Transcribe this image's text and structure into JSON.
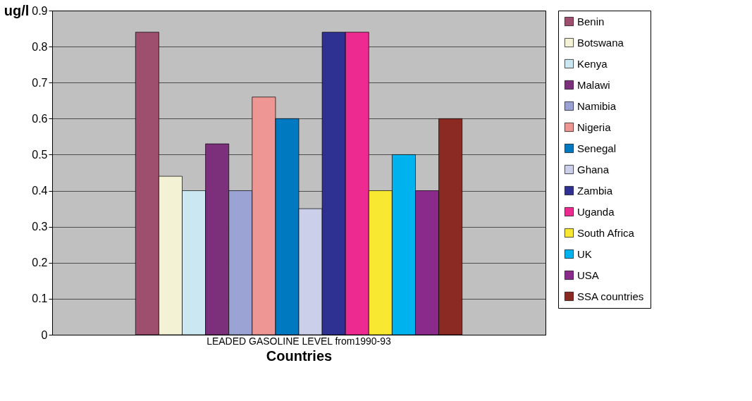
{
  "chart_data": {
    "type": "bar",
    "ylabel": "ug/l",
    "xlabel": "Countries",
    "categories": [
      "LEADED GASOLINE LEVEL from1990-93"
    ],
    "series": [
      {
        "name": "Benin",
        "color": "#9e4f6e",
        "values": [
          0.84
        ]
      },
      {
        "name": "Botswana",
        "color": "#f3f2d4",
        "values": [
          0.44
        ]
      },
      {
        "name": "Kenya",
        "color": "#cbe8f2",
        "values": [
          0.4
        ]
      },
      {
        "name": "Malawi",
        "color": "#7c307c",
        "values": [
          0.53
        ]
      },
      {
        "name": "Namibia",
        "color": "#9aa3d4",
        "values": [
          0.4
        ]
      },
      {
        "name": "Nigeria",
        "color": "#ee9693",
        "values": [
          0.66
        ]
      },
      {
        "name": "Senegal",
        "color": "#0079c1",
        "values": [
          0.6
        ]
      },
      {
        "name": "Ghana",
        "color": "#cbcfe9",
        "values": [
          0.35
        ]
      },
      {
        "name": "Zambia",
        "color": "#2e3191",
        "values": [
          0.84
        ]
      },
      {
        "name": "Uganda",
        "color": "#ec2a8f",
        "values": [
          0.84
        ]
      },
      {
        "name": "South Africa",
        "color": "#f8e831",
        "values": [
          0.4
        ]
      },
      {
        "name": "UK",
        "color": "#00b3ee",
        "values": [
          0.5
        ]
      },
      {
        "name": "USA",
        "color": "#8a2b8c",
        "values": [
          0.4
        ]
      },
      {
        "name": "SSA countries",
        "color": "#8b2a23",
        "values": [
          0.6
        ]
      }
    ],
    "ylim": [
      0,
      0.9
    ],
    "yticks": [
      0,
      0.1,
      0.2,
      0.3,
      0.4,
      0.5,
      0.6,
      0.7,
      0.8,
      0.9
    ],
    "grid": "y",
    "legend": "right"
  }
}
